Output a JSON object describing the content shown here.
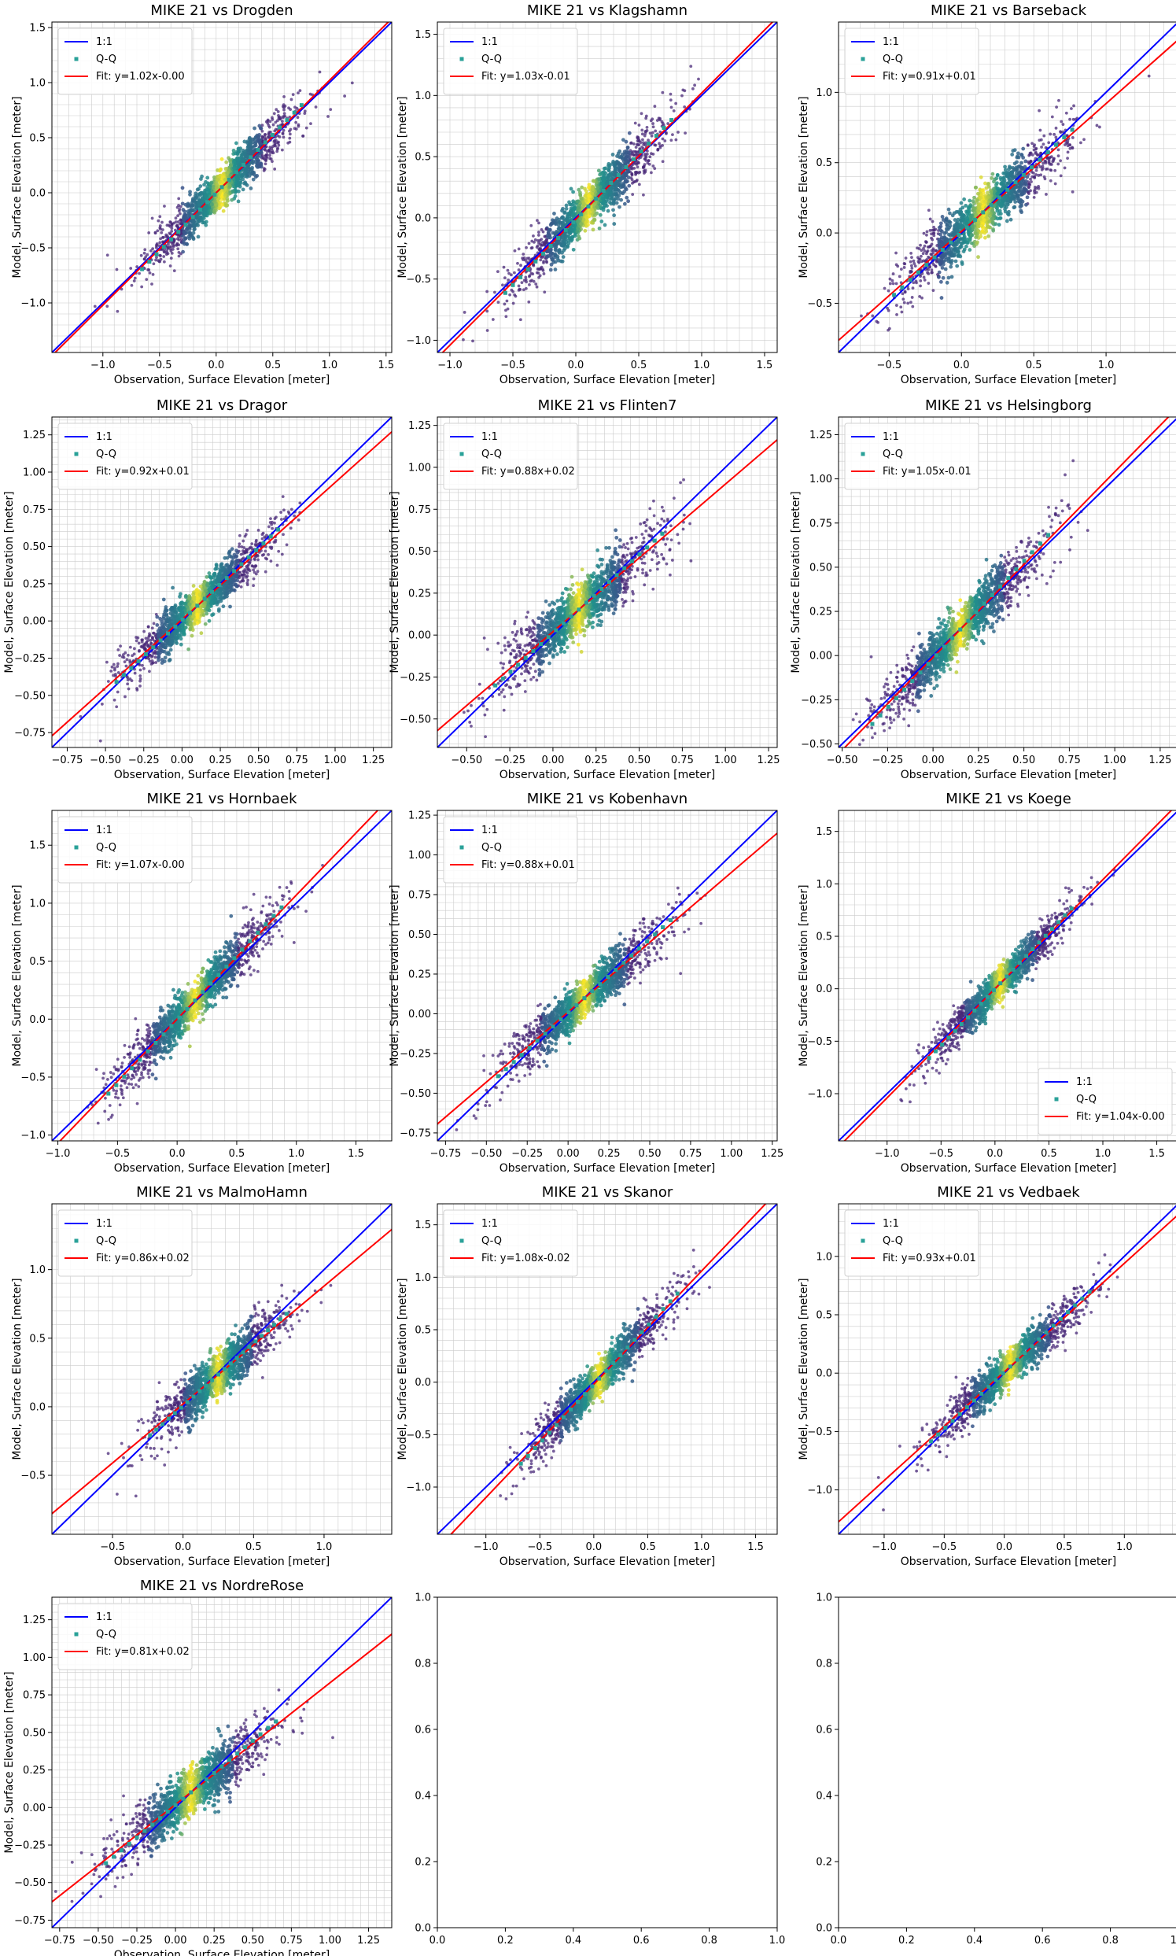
{
  "figure": {
    "xlabel": "Observation, Surface Elevation [meter]",
    "ylabel": "Model, Surface Elevation [meter]",
    "legend": {
      "one_to_one": "1:1",
      "qq": "Q-Q"
    },
    "colors": {
      "one_to_one": "#0000ff",
      "fit": "#ff0000",
      "qq": "#2aa198",
      "scatter": "#482878",
      "grid": "#cccccc",
      "density_low": "#3b528b",
      "density_mid": "#21918c",
      "density_high": "#fde725"
    }
  },
  "chart_data": [
    {
      "type": "scatter",
      "title": "MIKE 21 vs Drogden",
      "xlim": [
        -1.45,
        1.55
      ],
      "ylim": [
        -1.45,
        1.55
      ],
      "xticks": [
        -1.0,
        -0.5,
        0.0,
        0.5,
        1.0,
        1.5
      ],
      "yticks": [
        -1.0,
        -0.5,
        0.0,
        0.5,
        1.0,
        1.5
      ],
      "tick_labels": [
        "−1.0",
        "−0.5",
        "0.0",
        "0.5",
        "1.0",
        "1.5"
      ],
      "fit": {
        "slope": 1.02,
        "intercept": 0.0,
        "label": "Fit: y=1.02x-0.00"
      },
      "center": [
        0.05,
        0.05
      ],
      "spread": 0.32,
      "noise": 0.08,
      "legend_loc": "upper left"
    },
    {
      "type": "scatter",
      "title": "MIKE 21 vs Klagshamn",
      "xlim": [
        -1.1,
        1.6
      ],
      "ylim": [
        -1.1,
        1.6
      ],
      "xticks": [
        -1.0,
        -0.5,
        0.0,
        0.5,
        1.0,
        1.5
      ],
      "yticks": [
        -1.0,
        -0.5,
        0.0,
        0.5,
        1.0,
        1.5
      ],
      "tick_labels": [
        "−1.0",
        "−0.5",
        "0.0",
        "0.5",
        "1.0",
        "1.5"
      ],
      "fit": {
        "slope": 1.03,
        "intercept": -0.01,
        "label": "Fit: y=1.03x-0.01"
      },
      "center": [
        0.1,
        0.1
      ],
      "spread": 0.3,
      "noise": 0.08,
      "legend_loc": "upper left"
    },
    {
      "type": "scatter",
      "title": "MIKE 21 vs Barseback",
      "xlim": [
        -0.85,
        1.5
      ],
      "ylim": [
        -0.85,
        1.5
      ],
      "xticks": [
        -0.5,
        0.0,
        0.5,
        1.0
      ],
      "yticks": [
        -0.5,
        0.0,
        0.5,
        1.0
      ],
      "tick_labels": [
        "−0.5",
        "0.0",
        "0.5",
        "1.0"
      ],
      "fit": {
        "slope": 0.91,
        "intercept": 0.01,
        "label": "Fit: y=0.91x+0.01"
      },
      "center": [
        0.15,
        0.15
      ],
      "spread": 0.28,
      "noise": 0.08,
      "legend_loc": "upper left"
    },
    {
      "type": "scatter",
      "title": "MIKE 21 vs Dragor",
      "xlim": [
        -0.85,
        1.37
      ],
      "ylim": [
        -0.85,
        1.37
      ],
      "xticks": [
        -0.75,
        -0.5,
        -0.25,
        0.0,
        0.25,
        0.5,
        0.75,
        1.0,
        1.25
      ],
      "yticks": [
        -0.75,
        -0.5,
        -0.25,
        0.0,
        0.25,
        0.5,
        0.75,
        1.0,
        1.25
      ],
      "tick_labels": [
        "−0.75",
        "−0.50",
        "−0.25",
        "0.00",
        "0.25",
        "0.50",
        "0.75",
        "1.00",
        "1.25"
      ],
      "fit": {
        "slope": 0.92,
        "intercept": 0.01,
        "label": "Fit: y=0.92x+0.01"
      },
      "center": [
        0.1,
        0.1
      ],
      "spread": 0.24,
      "noise": 0.06,
      "legend_loc": "upper left"
    },
    {
      "type": "scatter",
      "title": "MIKE 21 vs Flinten7",
      "xlim": [
        -0.67,
        1.3
      ],
      "ylim": [
        -0.67,
        1.3
      ],
      "xticks": [
        -0.5,
        -0.25,
        0.0,
        0.25,
        0.5,
        0.75,
        1.0,
        1.25
      ],
      "yticks": [
        -0.5,
        -0.25,
        0.0,
        0.25,
        0.5,
        0.75,
        1.0,
        1.25
      ],
      "tick_labels": [
        "−0.50",
        "−0.25",
        "0.00",
        "0.25",
        "0.50",
        "0.75",
        "1.00",
        "1.25"
      ],
      "fit": {
        "slope": 0.88,
        "intercept": 0.02,
        "label": "Fit: y=0.88x+0.02"
      },
      "center": [
        0.15,
        0.13
      ],
      "spread": 0.22,
      "noise": 0.07,
      "legend_loc": "upper left"
    },
    {
      "type": "scatter",
      "title": "MIKE 21 vs Helsingborg",
      "xlim": [
        -0.52,
        1.35
      ],
      "ylim": [
        -0.52,
        1.35
      ],
      "xticks": [
        -0.5,
        -0.25,
        0.0,
        0.25,
        0.5,
        0.75,
        1.0,
        1.25
      ],
      "yticks": [
        -0.5,
        -0.25,
        0.0,
        0.25,
        0.5,
        0.75,
        1.0,
        1.25
      ],
      "tick_labels": [
        "−0.50",
        "−0.25",
        "0.00",
        "0.25",
        "0.50",
        "0.75",
        "1.00",
        "1.25"
      ],
      "fit": {
        "slope": 1.05,
        "intercept": -0.01,
        "label": "Fit: y=1.05x-0.01"
      },
      "center": [
        0.15,
        0.15
      ],
      "spread": 0.22,
      "noise": 0.06,
      "legend_loc": "upper left"
    },
    {
      "type": "scatter",
      "title": "MIKE 21 vs Hornbaek",
      "xlim": [
        -1.05,
        1.8
      ],
      "ylim": [
        -1.05,
        1.8
      ],
      "xticks": [
        -1.0,
        -0.5,
        0.0,
        0.5,
        1.0,
        1.5
      ],
      "yticks": [
        -1.0,
        -0.5,
        0.0,
        0.5,
        1.0,
        1.5
      ],
      "tick_labels": [
        "−1.0",
        "−0.5",
        "0.0",
        "0.5",
        "1.0",
        "1.5"
      ],
      "fit": {
        "slope": 1.07,
        "intercept": 0.0,
        "label": "Fit: y=1.07x-0.00"
      },
      "center": [
        0.15,
        0.15
      ],
      "spread": 0.33,
      "noise": 0.08,
      "legend_loc": "upper left"
    },
    {
      "type": "scatter",
      "title": "MIKE 21 vs Kobenhavn",
      "xlim": [
        -0.8,
        1.28
      ],
      "ylim": [
        -0.8,
        1.28
      ],
      "xticks": [
        -0.75,
        -0.5,
        -0.25,
        0.0,
        0.25,
        0.5,
        0.75,
        1.0,
        1.25
      ],
      "yticks": [
        -0.75,
        -0.5,
        -0.25,
        0.0,
        0.25,
        0.5,
        0.75,
        1.0,
        1.25
      ],
      "tick_labels": [
        "−0.75",
        "−0.50",
        "−0.25",
        "0.00",
        "0.25",
        "0.50",
        "0.75",
        "1.00",
        "1.25"
      ],
      "fit": {
        "slope": 0.88,
        "intercept": 0.01,
        "label": "Fit: y=0.88x+0.01"
      },
      "center": [
        0.1,
        0.1
      ],
      "spread": 0.24,
      "noise": 0.06,
      "legend_loc": "upper left"
    },
    {
      "type": "scatter",
      "title": "MIKE 21 vs Koege",
      "xlim": [
        -1.45,
        1.7
      ],
      "ylim": [
        -1.45,
        1.7
      ],
      "xticks": [
        -1.0,
        -0.5,
        0.0,
        0.5,
        1.0,
        1.5
      ],
      "yticks": [
        -1.0,
        -0.5,
        0.0,
        0.5,
        1.0,
        1.5
      ],
      "tick_labels": [
        "−1.0",
        "−0.5",
        "0.0",
        "0.5",
        "1.0",
        "1.5"
      ],
      "fit": {
        "slope": 1.04,
        "intercept": 0.0,
        "label": "Fit: y=1.04x-0.00"
      },
      "center": [
        0.05,
        0.05
      ],
      "spread": 0.3,
      "noise": 0.07,
      "legend_loc": "lower right"
    },
    {
      "type": "scatter",
      "title": "MIKE 21 vs MalmoHamn",
      "xlim": [
        -0.93,
        1.48
      ],
      "ylim": [
        -0.93,
        1.48
      ],
      "xticks": [
        -0.5,
        0.0,
        0.5,
        1.0
      ],
      "yticks": [
        -0.5,
        0.0,
        0.5,
        1.0
      ],
      "tick_labels": [
        "−0.5",
        "0.0",
        "0.5",
        "1.0"
      ],
      "fit": {
        "slope": 0.86,
        "intercept": 0.02,
        "label": "Fit: y=0.86x+0.02"
      },
      "center": [
        0.25,
        0.23
      ],
      "spread": 0.22,
      "noise": 0.07,
      "legend_loc": "upper left"
    },
    {
      "type": "scatter",
      "title": "MIKE 21 vs Skanor",
      "xlim": [
        -1.45,
        1.7
      ],
      "ylim": [
        -1.45,
        1.7
      ],
      "xticks": [
        -1.0,
        -0.5,
        0.0,
        0.5,
        1.0,
        1.5
      ],
      "yticks": [
        -1.0,
        -0.5,
        0.0,
        0.5,
        1.0,
        1.5
      ],
      "tick_labels": [
        "−1.0",
        "−0.5",
        "0.0",
        "0.5",
        "1.0",
        "1.5"
      ],
      "fit": {
        "slope": 1.08,
        "intercept": -0.02,
        "label": "Fit: y=1.08x-0.02"
      },
      "center": [
        0.05,
        0.05
      ],
      "spread": 0.33,
      "noise": 0.08,
      "legend_loc": "upper left"
    },
    {
      "type": "scatter",
      "title": "MIKE 21 vs Vedbaek",
      "xlim": [
        -1.38,
        1.45
      ],
      "ylim": [
        -1.38,
        1.45
      ],
      "xticks": [
        -1.0,
        -0.5,
        0.0,
        0.5,
        1.0
      ],
      "yticks": [
        -1.0,
        -0.5,
        0.0,
        0.5,
        1.0
      ],
      "tick_labels": [
        "−1.0",
        "−0.5",
        "0.0",
        "0.5",
        "1.0"
      ],
      "fit": {
        "slope": 0.93,
        "intercept": 0.01,
        "label": "Fit: y=0.93x+0.01"
      },
      "center": [
        0.05,
        0.05
      ],
      "spread": 0.3,
      "noise": 0.07,
      "legend_loc": "upper left"
    },
    {
      "type": "scatter",
      "title": "MIKE 21 vs NordreRose",
      "xlim": [
        -0.8,
        1.4
      ],
      "ylim": [
        -0.8,
        1.4
      ],
      "xticks": [
        -0.75,
        -0.5,
        -0.25,
        0.0,
        0.25,
        0.5,
        0.75,
        1.0,
        1.25
      ],
      "yticks": [
        -0.75,
        -0.5,
        -0.25,
        0.0,
        0.25,
        0.5,
        0.75,
        1.0,
        1.25
      ],
      "tick_labels": [
        "−0.75",
        "−0.50",
        "−0.25",
        "0.00",
        "0.25",
        "0.50",
        "0.75",
        "1.00",
        "1.25"
      ],
      "fit": {
        "slope": 0.81,
        "intercept": 0.02,
        "label": "Fit: y=0.81x+0.02"
      },
      "center": [
        0.1,
        0.1
      ],
      "spread": 0.25,
      "noise": 0.07,
      "legend_loc": "upper left"
    },
    {
      "type": "empty",
      "title": "",
      "xlim": [
        0,
        1
      ],
      "ylim": [
        0,
        1
      ],
      "xticks": [
        0.0,
        0.2,
        0.4,
        0.6,
        0.8,
        1.0
      ],
      "yticks": [
        0.0,
        0.2,
        0.4,
        0.6,
        0.8,
        1.0
      ],
      "tick_labels": [
        "0.0",
        "0.2",
        "0.4",
        "0.6",
        "0.8",
        "1.0"
      ]
    },
    {
      "type": "empty",
      "title": "",
      "xlim": [
        0,
        1
      ],
      "ylim": [
        0,
        1
      ],
      "xticks": [
        0.0,
        0.2,
        0.4,
        0.6,
        0.8,
        1.0
      ],
      "yticks": [
        0.0,
        0.2,
        0.4,
        0.6,
        0.8,
        1.0
      ],
      "tick_labels": [
        "0.0",
        "0.2",
        "0.4",
        "0.6",
        "0.8",
        "1.0"
      ]
    }
  ]
}
